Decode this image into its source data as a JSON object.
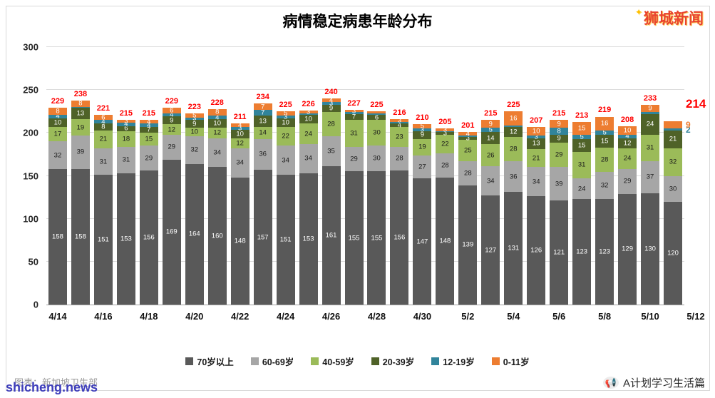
{
  "title": "病情稳定病患年龄分布",
  "watermarks": {
    "top_right": "狮城新闻",
    "bottom_left": "shicheng.news"
  },
  "caption": "图表：新加坡卫生部",
  "brand": {
    "icon": "📢",
    "text": "A计划学习生活篇"
  },
  "decor": {
    "sparkle": "✦"
  },
  "chart_data": {
    "type": "bar",
    "stacked": true,
    "title": "病情稳定病患年龄分布",
    "categories": [
      "4/14",
      "4/15",
      "4/16",
      "4/17",
      "4/18",
      "4/19",
      "4/20",
      "4/21",
      "4/22",
      "4/23",
      "4/24",
      "4/25",
      "4/26",
      "4/27",
      "4/28",
      "4/29",
      "4/30",
      "5/1",
      "5/2",
      "5/3",
      "5/4",
      "5/5",
      "5/6",
      "5/7",
      "5/8",
      "5/9",
      "5/10",
      "5/11"
    ],
    "x_tick_labels": [
      "4/14",
      "4/16",
      "4/18",
      "4/20",
      "4/22",
      "4/24",
      "4/26",
      "4/28",
      "4/30",
      "5/2",
      "5/4",
      "5/6",
      "5/8",
      "5/10",
      "5/12"
    ],
    "ylim": [
      0,
      300
    ],
    "yticks": [
      0,
      50,
      100,
      150,
      200,
      250,
      300
    ],
    "grid": true,
    "legend_position": "bottom",
    "total_label_color": "#ff0000",
    "series": [
      {
        "name": "70岁以上",
        "color": "#595959",
        "label_color": "#ffffff",
        "values": [
          158,
          158,
          151,
          153,
          156,
          169,
          164,
          160,
          148,
          157,
          151,
          153,
          161,
          155,
          155,
          156,
          147,
          148,
          139,
          127,
          131,
          126,
          121,
          123,
          123,
          129,
          130,
          120
        ]
      },
      {
        "name": "60-69岁",
        "color": "#a6a6a6",
        "label_color": "#1a1a1a",
        "values": [
          32,
          39,
          31,
          31,
          29,
          29,
          32,
          34,
          34,
          36,
          34,
          34,
          35,
          29,
          30,
          28,
          27,
          28,
          28,
          34,
          36,
          34,
          39,
          24,
          32,
          29,
          37,
          30
        ]
      },
      {
        "name": "40-59岁",
        "color": "#9bbb59",
        "label_color": "#1a1a1a",
        "values": [
          17,
          19,
          21,
          18,
          15,
          12,
          10,
          12,
          12,
          14,
          22,
          24,
          28,
          31,
          30,
          23,
          19,
          22,
          25,
          26,
          28,
          21,
          29,
          31,
          28,
          24,
          31,
          32
        ]
      },
      {
        "name": "20-39岁",
        "color": "#4f6228",
        "label_color": "#ffffff",
        "values": [
          10,
          13,
          8,
          6,
          7,
          9,
          9,
          10,
          10,
          13,
          10,
          10,
          9,
          7,
          6,
          4,
          9,
          3,
          3,
          14,
          12,
          13,
          9,
          15,
          15,
          12,
          24,
          21
        ]
      },
      {
        "name": "12-19岁",
        "color": "#31849b",
        "label_color": "#ffffff",
        "values": [
          4,
          1,
          4,
          4,
          4,
          4,
          3,
          4,
          3,
          7,
          3,
          2,
          3,
          2,
          2,
          2,
          3,
          1,
          2,
          5,
          2,
          3,
          8,
          5,
          5,
          4,
          2,
          2
        ]
      },
      {
        "name": "0-11岁",
        "color": "#ed7d31",
        "label_color": "#ffffff",
        "values": [
          8,
          8,
          6,
          3,
          4,
          6,
          5,
          8,
          4,
          7,
          5,
          3,
          4,
          3,
          2,
          3,
          5,
          3,
          4,
          9,
          16,
          10,
          9,
          15,
          16,
          10,
          9,
          9
        ]
      }
    ],
    "totals": [
      229,
      238,
      221,
      215,
      215,
      229,
      223,
      228,
      211,
      234,
      225,
      226,
      240,
      227,
      225,
      216,
      210,
      205,
      201,
      215,
      225,
      207,
      215,
      213,
      219,
      208,
      233,
      214
    ]
  }
}
